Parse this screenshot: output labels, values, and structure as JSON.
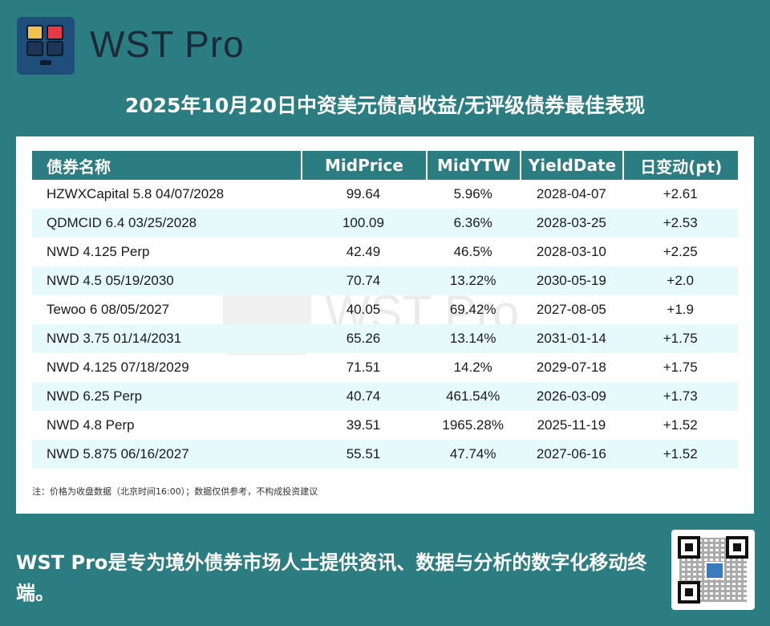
{
  "header": {
    "brand": "WST Pro",
    "title": "2025年10月20日中资美元债高收益/无评级债券最佳表现",
    "logo_colors": [
      "#f2c14e",
      "#e63946",
      "#1d3557",
      "#1d3557"
    ]
  },
  "table": {
    "columns": [
      "债券名称",
      "MidPrice",
      "MidYTW",
      "YieldDate",
      "日变动(pt)"
    ],
    "rows": [
      {
        "name": "HZWXCapital 5.8 04/07/2028",
        "price": "99.64",
        "ytw": "5.96%",
        "date": "2028-04-07",
        "chg": "+2.61"
      },
      {
        "name": "QDMCID 6.4 03/25/2028",
        "price": "100.09",
        "ytw": "6.36%",
        "date": "2028-03-25",
        "chg": "+2.53"
      },
      {
        "name": "NWD 4.125 Perp",
        "price": "42.49",
        "ytw": "46.5%",
        "date": "2028-03-10",
        "chg": "+2.25"
      },
      {
        "name": "NWD 4.5 05/19/2030",
        "price": "70.74",
        "ytw": "13.22%",
        "date": "2030-05-19",
        "chg": "+2.0"
      },
      {
        "name": "Tewoo 6 08/05/2027",
        "price": "40.05",
        "ytw": "69.42%",
        "date": "2027-08-05",
        "chg": "+1.9"
      },
      {
        "name": "NWD 3.75 01/14/2031",
        "price": "65.26",
        "ytw": "13.14%",
        "date": "2031-01-14",
        "chg": "+1.75"
      },
      {
        "name": "NWD 4.125 07/18/2029",
        "price": "71.51",
        "ytw": "14.2%",
        "date": "2029-07-18",
        "chg": "+1.75"
      },
      {
        "name": "NWD 6.25 Perp",
        "price": "40.74",
        "ytw": "461.54%",
        "date": "2026-03-09",
        "chg": "+1.73"
      },
      {
        "name": "NWD 4.8 Perp",
        "price": "39.51",
        "ytw": "1965.28%",
        "date": "2025-11-19",
        "chg": "+1.52"
      },
      {
        "name": "NWD 5.875 06/16/2027",
        "price": "55.51",
        "ytw": "47.74%",
        "date": "2027-06-16",
        "chg": "+1.52"
      }
    ],
    "note": "注：价格为收盘数据（北京时间16:00）；数据仅供参考，不构成投资建议"
  },
  "watermark": "WST Pro",
  "footer": {
    "text": "WST Pro是专为境外债券市场人士提供资讯、数据与分析的数字化移动终端。"
  }
}
